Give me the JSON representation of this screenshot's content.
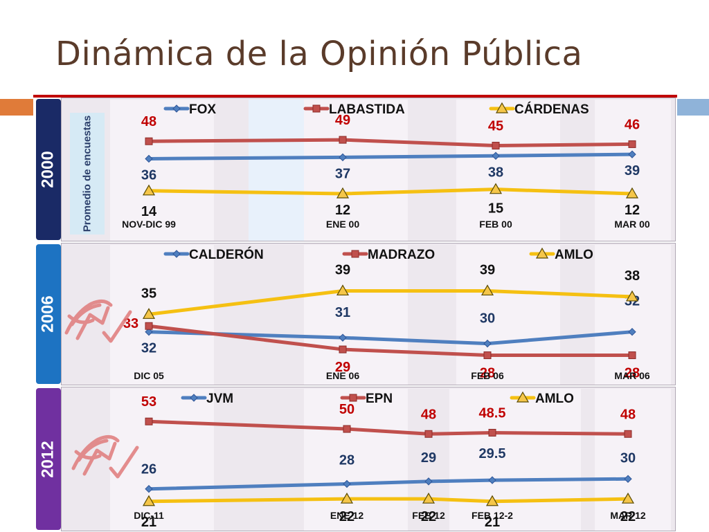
{
  "slide": {
    "title": "Dinámica de la Opinión Pública"
  },
  "chart_data": [
    {
      "type": "line",
      "panel_label": "2000",
      "ylabel": "Promedio de encuestas",
      "categories": [
        "NOV-DIC 99",
        "ENE 00",
        "FEB 00",
        "MAR 00"
      ],
      "series": [
        {
          "name": "FOX",
          "values": [
            36,
            37,
            38,
            39
          ],
          "color": "#4f7fbf",
          "marker": "diamond"
        },
        {
          "name": "LABASTIDA",
          "values": [
            48,
            49,
            45,
            46
          ],
          "color": "#c0504d",
          "marker": "square"
        },
        {
          "name": "CÁRDENAS",
          "values": [
            14,
            12,
            15,
            12
          ],
          "color": "#f5c012",
          "marker": "triangle"
        }
      ],
      "legend_position": "top",
      "grid": false
    },
    {
      "type": "line",
      "panel_label": "2006",
      "categories": [
        "DIC 05",
        "ENE 06",
        "FEB 06",
        "MAR 06"
      ],
      "series": [
        {
          "name": "CALDERÓN",
          "values": [
            32,
            31,
            30,
            32
          ],
          "color": "#4f7fbf",
          "marker": "diamond"
        },
        {
          "name": "MADRAZO",
          "values": [
            33,
            29,
            28,
            28
          ],
          "color": "#c0504d",
          "marker": "square"
        },
        {
          "name": "AMLO",
          "values": [
            35,
            39,
            39,
            38
          ],
          "color": "#f5c012",
          "marker": "triangle"
        }
      ],
      "legend_position": "top",
      "grid": false
    },
    {
      "type": "line",
      "panel_label": "2012",
      "categories": [
        "DIC-11",
        "ENE 12",
        "FEB 12",
        "FEB 12-2",
        "MAR 12"
      ],
      "series": [
        {
          "name": "JVM",
          "values": [
            26,
            28,
            29,
            29.5,
            30
          ],
          "color": "#4f7fbf",
          "marker": "diamond"
        },
        {
          "name": "EPN",
          "values": [
            53,
            50,
            48,
            48.5,
            48
          ],
          "color": "#c0504d",
          "marker": "square"
        },
        {
          "name": "AMLO",
          "values": [
            21,
            22,
            22,
            21,
            22
          ],
          "color": "#f5c012",
          "marker": "triangle"
        }
      ],
      "legend_position": "top",
      "grid": false
    }
  ],
  "colors": {
    "year_2000": "#1a2a66",
    "year_2006": "#1d73c2",
    "year_2012": "#7030a0",
    "blue_label": "#1f3864",
    "red_label": "#c00000",
    "black_label": "#111111"
  }
}
